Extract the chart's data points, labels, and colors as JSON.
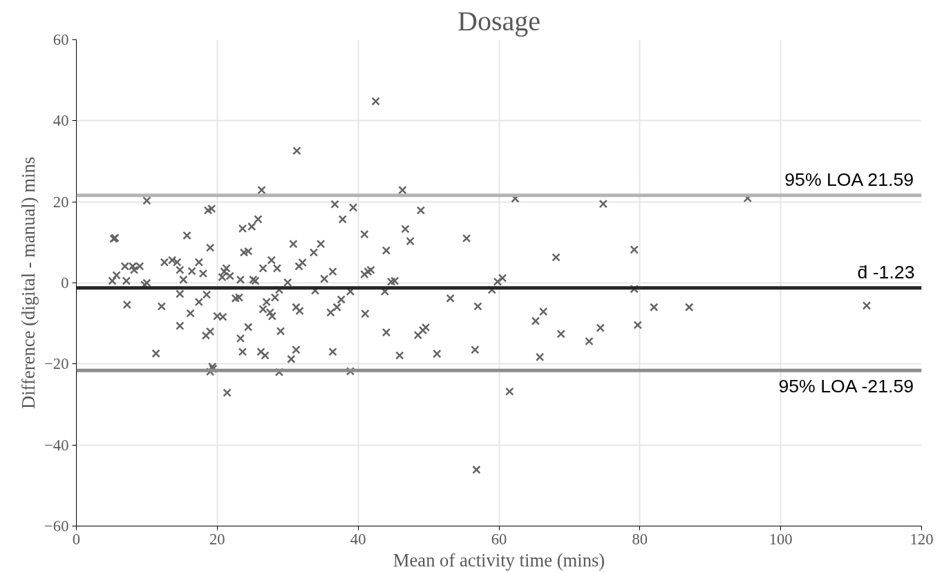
{
  "chart_data": {
    "type": "scatter",
    "title": "Dosage",
    "xlabel": "Mean of activity time (mins)",
    "ylabel": "Difference (digital - manual) mins",
    "xlim": [
      0,
      120
    ],
    "ylim": [
      -60,
      60
    ],
    "xticks": [
      0,
      20,
      40,
      60,
      80,
      100,
      120
    ],
    "yticks": [
      -60,
      -40,
      -20,
      0,
      20,
      40,
      60
    ],
    "grid": true,
    "marker": "cross",
    "series": [
      {
        "color": "#636363",
        "x": [
          10.0,
          18.7,
          5.3,
          5.5,
          15.7,
          19.0,
          5.1,
          5.7,
          6.9,
          8.0,
          9.0,
          7.1,
          8.2,
          9.7,
          12.5,
          14.3,
          14.7,
          17.4,
          16.4,
          15.2,
          18.0,
          14.7,
          7.2,
          12.1,
          16.2,
          17.4,
          18.5,
          14.7,
          18.4,
          11.3,
          19.0,
          10.0,
          26.3,
          19.2,
          23.6,
          24.9,
          25.8,
          23.8,
          30.8,
          34.7,
          33.7,
          21.3,
          20.7,
          27.7,
          26.5,
          28.5,
          31.6,
          32.1,
          36.4,
          35.2,
          25.1,
          23.3,
          30.0,
          33.9,
          28.8,
          23.1,
          27.0,
          28.2,
          31.2,
          31.7,
          27.5,
          26.5,
          27.8,
          36.1,
          37.0,
          37.6,
          20.0,
          20.8,
          19.0,
          24.4,
          23.3,
          23.6,
          26.2,
          26.8,
          29.0,
          31.2,
          30.5,
          36.4,
          28.8,
          19.4,
          21.4,
          31.3,
          36.7,
          37.8,
          42.5,
          46.3,
          62.3,
          39.3,
          48.9,
          40.9,
          46.7,
          47.4,
          55.4,
          44.0,
          40.9,
          41.4,
          41.8,
          60.5,
          59.8,
          44.7,
          45.2,
          43.8,
          38.9,
          59.0,
          53.1,
          57.0,
          41.0,
          44.0,
          48.5,
          49.2,
          49.6,
          45.9,
          51.2,
          56.6,
          38.9,
          61.5,
          56.8,
          74.8,
          95.3,
          68.1,
          79.2,
          79.2,
          82.0,
          87.0,
          112.2,
          66.3,
          65.2,
          68.8,
          72.8,
          74.4,
          79.7,
          65.8,
          21.0,
          21.8,
          24.4,
          25.4,
          22.6,
          19.3,
          13.6
        ],
        "values": [
          20.3,
          17.9,
          10.9,
          11.1,
          11.7,
          8.7,
          0.5,
          1.9,
          4.1,
          4.1,
          4.1,
          0.5,
          3.2,
          -0.5,
          5.1,
          5.1,
          3.2,
          5.1,
          2.9,
          0.8,
          2.3,
          -2.7,
          -5.4,
          -5.8,
          -7.5,
          -4.7,
          -2.9,
          -10.6,
          -13.0,
          -17.4,
          -21.9,
          0.0,
          22.9,
          18.3,
          13.4,
          13.9,
          15.7,
          7.5,
          9.6,
          9.6,
          7.5,
          3.6,
          1.4,
          5.6,
          3.6,
          3.6,
          4.1,
          5.0,
          2.8,
          1.0,
          0.8,
          0.8,
          0.1,
          -1.9,
          -1.7,
          -3.6,
          -4.7,
          -3.6,
          -6.0,
          -6.9,
          -7.3,
          -6.5,
          -8.2,
          -7.3,
          -6.0,
          -4.1,
          -8.2,
          -8.4,
          -12.0,
          -10.9,
          -13.7,
          -17.0,
          -17.0,
          -17.9,
          -11.9,
          -16.5,
          -18.8,
          -17.0,
          -22.0,
          -21.2,
          -27.1,
          32.6,
          19.4,
          15.7,
          44.8,
          22.9,
          20.8,
          18.6,
          17.9,
          12.0,
          13.3,
          10.3,
          11.0,
          8.0,
          2.1,
          2.8,
          3.2,
          1.2,
          0.3,
          0.3,
          0.5,
          -2.1,
          -2.1,
          -1.7,
          -3.8,
          -5.8,
          -7.6,
          -12.2,
          -12.9,
          -11.7,
          -11.0,
          -17.9,
          -17.5,
          -16.5,
          -21.8,
          -26.8,
          -46.1,
          19.5,
          20.9,
          6.3,
          8.2,
          -1.5,
          -6.0,
          -6.0,
          -5.6,
          -7.1,
          -9.4,
          -12.6,
          -14.4,
          -11.1,
          -10.4,
          -18.3,
          2.8,
          1.7,
          7.8,
          0.5,
          -3.8,
          -20.7,
          5.6
        ]
      }
    ],
    "ref_lines": [
      {
        "axis": "y",
        "value": 21.59,
        "label": "95% LOA 21.59",
        "color": "#b3b3b3"
      },
      {
        "axis": "y",
        "value": -1.23,
        "label": "d̄ -1.23",
        "color": "#262626"
      },
      {
        "axis": "y",
        "value": -21.59,
        "label": "95% LOA -21.59",
        "color": "#8c8c8c"
      }
    ]
  }
}
